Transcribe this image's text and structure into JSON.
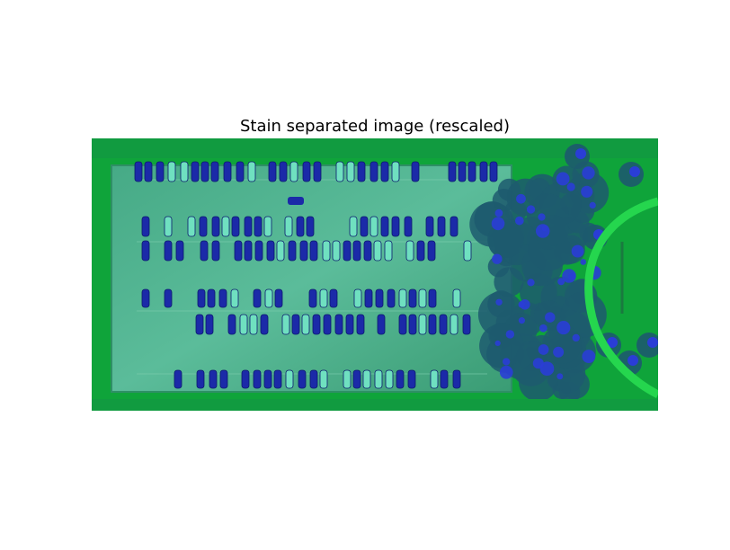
{
  "figure": {
    "title": "Stain separated image (rescaled)"
  },
  "image": {
    "subject": "aerial view of a parking lot with rows of parked cars, trees on the right, and a curved path on grass",
    "palette": {
      "grass": "#12b23a",
      "lot": "#3fa37e",
      "lot_light": "#58bd98",
      "car_dark": "#1b2aa8",
      "car_light": "#6fe0c0",
      "tree": "#1d5a6e",
      "tree_highlight": "#2a3dd6",
      "path": "#1ed848"
    }
  }
}
